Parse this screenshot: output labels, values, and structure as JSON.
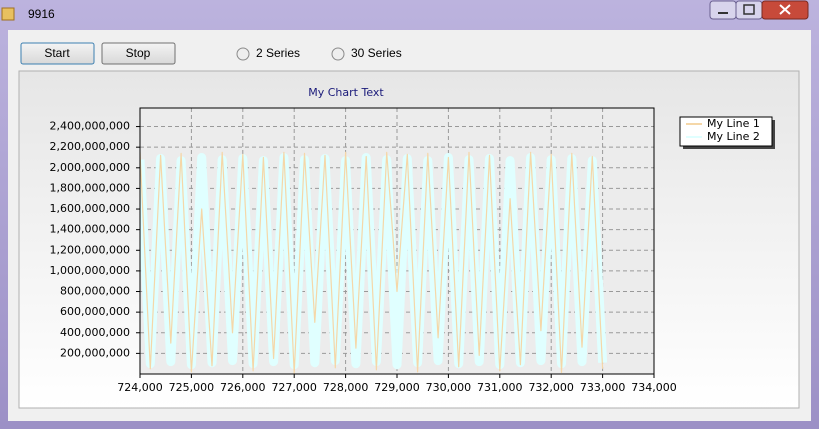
{
  "window": {
    "title": "9916"
  },
  "controls": {
    "start": "Start",
    "stop": "Stop",
    "radio_2": "2 Series",
    "radio_30": "30 Series"
  },
  "chart_data": {
    "type": "line",
    "title": "My Chart Text",
    "x": [
      724000,
      724200,
      724400,
      724600,
      724800,
      725000,
      725200,
      725400,
      725600,
      725800,
      726000,
      726200,
      726400,
      726600,
      726800,
      727000,
      727200,
      727400,
      727600,
      727800,
      728000,
      728200,
      728400,
      728600,
      728800,
      729000,
      729200,
      729400,
      729600,
      729800,
      730000,
      730200,
      730400,
      730600,
      730800,
      731000,
      731200,
      731400,
      731600,
      731800,
      732000,
      732200,
      732400,
      732600,
      732800,
      733000
    ],
    "series": [
      {
        "name": "My Line 2",
        "color": "#e0ffff",
        "values": [
          2080000000,
          100000000,
          2090000000,
          120000000,
          2070000000,
          90000000,
          2100000000,
          110000000,
          2080000000,
          130000000,
          2090000000,
          100000000,
          2070000000,
          120000000,
          2100000000,
          90000000,
          2080000000,
          110000000,
          2090000000,
          130000000,
          2070000000,
          100000000,
          2100000000,
          120000000,
          2080000000,
          90000000,
          2090000000,
          110000000,
          2070000000,
          130000000,
          2100000000,
          100000000,
          2080000000,
          120000000,
          2090000000,
          90000000,
          2070000000,
          110000000,
          2100000000,
          130000000,
          2080000000,
          100000000,
          2090000000,
          120000000,
          2070000000,
          110000000
        ]
      },
      {
        "name": "My Line 1",
        "color": "#f5d7a8",
        "values": [
          2150000000,
          50000000,
          2120000000,
          300000000,
          2140000000,
          20000000,
          1600000000,
          80000000,
          2150000000,
          400000000,
          2130000000,
          30000000,
          2100000000,
          150000000,
          2150000000,
          10000000,
          2140000000,
          500000000,
          2120000000,
          60000000,
          2150000000,
          250000000,
          2110000000,
          40000000,
          2150000000,
          800000000,
          2130000000,
          20000000,
          2140000000,
          350000000,
          2100000000,
          70000000,
          2150000000,
          180000000,
          2120000000,
          30000000,
          1700000000,
          90000000,
          2150000000,
          420000000,
          2130000000,
          15000000,
          2140000000,
          260000000,
          2110000000,
          50000000
        ]
      }
    ],
    "xlim": [
      724000,
      734000
    ],
    "xticks": [
      {
        "value": 724000,
        "label": "724,000"
      },
      {
        "value": 725000,
        "label": "725,000"
      },
      {
        "value": 726000,
        "label": "726,000"
      },
      {
        "value": 727000,
        "label": "727,000"
      },
      {
        "value": 728000,
        "label": "728,000"
      },
      {
        "value": 729000,
        "label": "729,000"
      },
      {
        "value": 730000,
        "label": "730,000"
      },
      {
        "value": 731000,
        "label": "731,000"
      },
      {
        "value": 732000,
        "label": "732,000"
      },
      {
        "value": 733000,
        "label": "733,000"
      },
      {
        "value": 734000,
        "label": "734,000"
      }
    ],
    "ylim": [
      0,
      2580000000
    ],
    "yticks": [
      {
        "value": 200000000,
        "label": "200,000,000"
      },
      {
        "value": 400000000,
        "label": "400,000,000"
      },
      {
        "value": 600000000,
        "label": "600,000,000"
      },
      {
        "value": 800000000,
        "label": "800,000,000"
      },
      {
        "value": 1000000000,
        "label": "1,000,000,000"
      },
      {
        "value": 1200000000,
        "label": "1,200,000,000"
      },
      {
        "value": 1400000000,
        "label": "1,400,000,000"
      },
      {
        "value": 1600000000,
        "label": "1,600,000,000"
      },
      {
        "value": 1800000000,
        "label": "1,800,000,000"
      },
      {
        "value": 2000000000,
        "label": "2,000,000,000"
      },
      {
        "value": 2200000000,
        "label": "2,200,000,000"
      },
      {
        "value": 2400000000,
        "label": "2,400,000,000"
      }
    ],
    "grid": true,
    "legend": "right"
  }
}
